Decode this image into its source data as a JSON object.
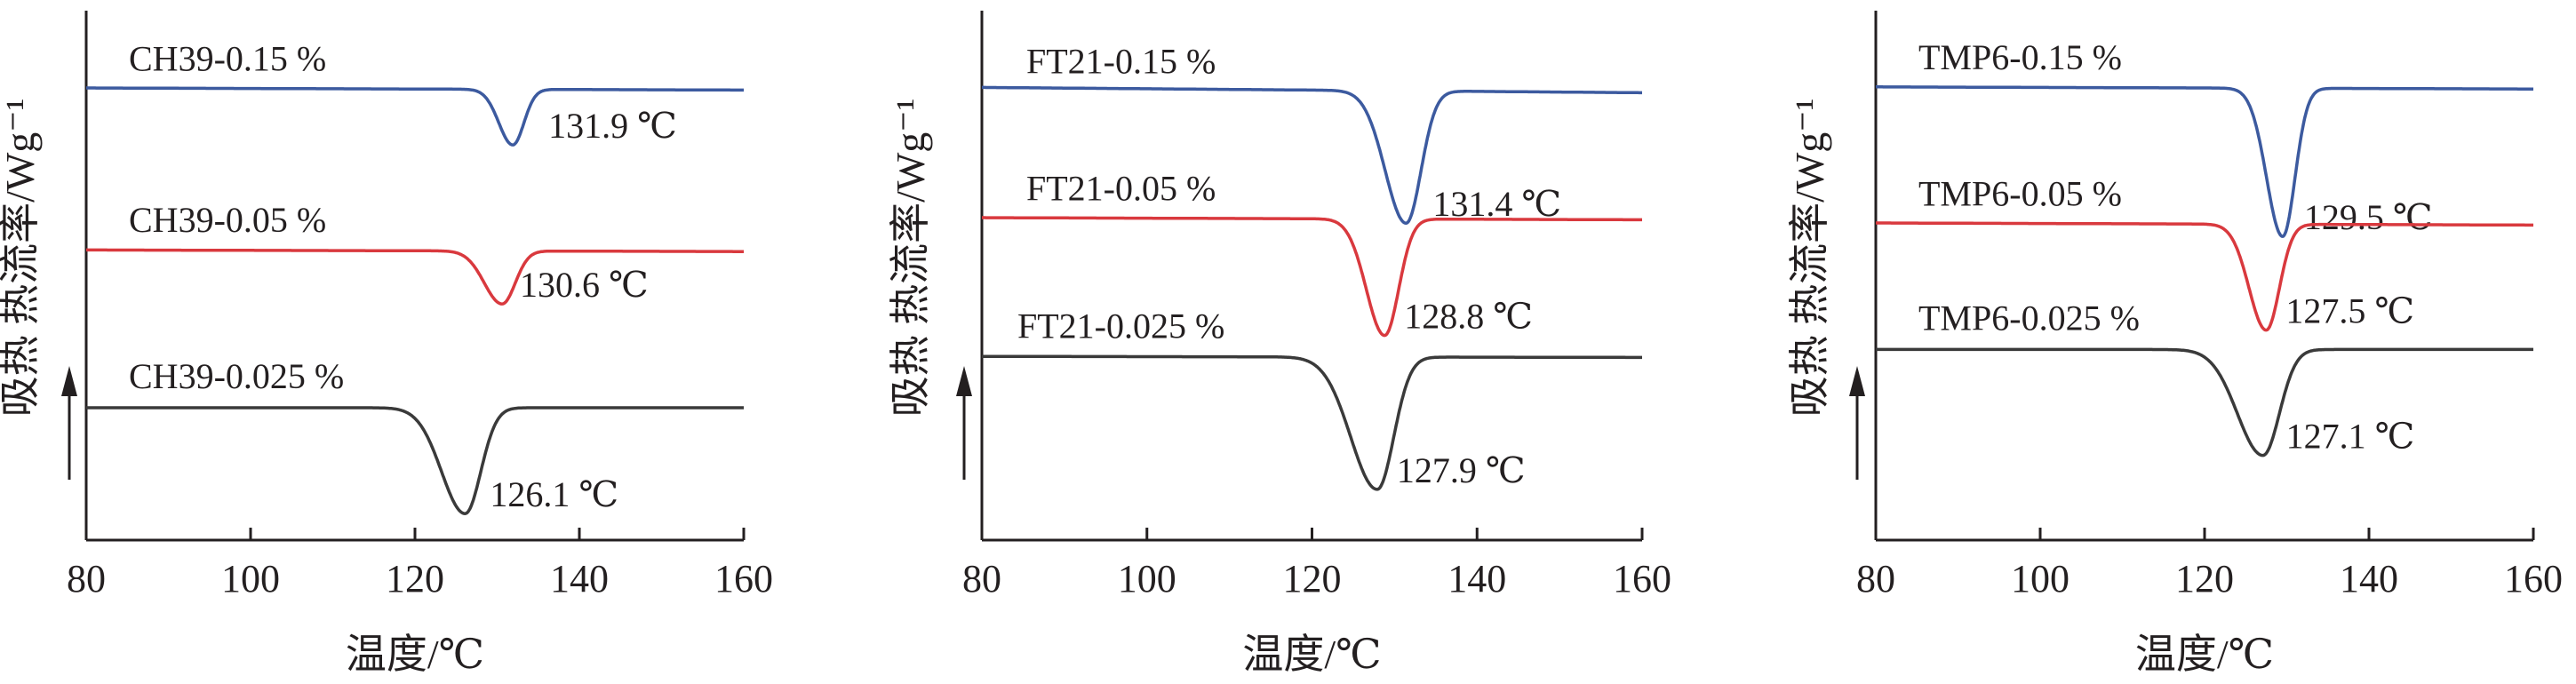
{
  "colors": {
    "axis": "#231f20",
    "series": [
      "#3c5a9f",
      "#d9393e",
      "#3a3a3a"
    ]
  },
  "chart_data": [
    {
      "type": "line",
      "xlabel": "温度/℃",
      "ylabel": "吸热 热流率/Wg⁻¹",
      "xlim": [
        80,
        160
      ],
      "xticks": [
        80,
        100,
        120,
        140,
        160
      ],
      "grid": false,
      "series": [
        {
          "name": "CH39-0.15 %",
          "baseline": 0.85,
          "peak_x": 131.9,
          "peak_label": "131.9 ℃",
          "depth": 0.105,
          "width": 1.35,
          "tail": 0.25,
          "drift": 0.004
        },
        {
          "name": "CH39-0.05 %",
          "baseline": 0.545,
          "peak_x": 130.6,
          "peak_label": "130.6 ℃",
          "depth": 0.1,
          "width": 1.6,
          "tail": 0.35,
          "drift": 0.003
        },
        {
          "name": "CH39-0.025 %",
          "baseline": 0.25,
          "peak_x": 126.1,
          "peak_label": "126.1 ℃",
          "depth": 0.2,
          "width": 1.9,
          "tail": 0.5,
          "drift": 0.0
        }
      ]
    },
    {
      "type": "line",
      "xlabel": "温度/℃",
      "ylabel": "吸热 热流率/Wg⁻¹",
      "xlim": [
        80,
        160
      ],
      "xticks": [
        80,
        100,
        120,
        140,
        160
      ],
      "grid": false,
      "series": [
        {
          "name": "FT21-0.15 %",
          "baseline": 0.845,
          "peak_x": 131.4,
          "peak_label": "131.4 ℃",
          "depth": 0.25,
          "width": 1.8,
          "tail": 0.4,
          "drift": 0.01
        },
        {
          "name": "FT21-0.05 %",
          "baseline": 0.605,
          "peak_x": 128.8,
          "peak_label": "128.8 ℃",
          "depth": 0.22,
          "width": 1.7,
          "tail": 0.3,
          "drift": 0.004
        },
        {
          "name": "FT21-0.025 %",
          "baseline": 0.345,
          "peak_x": 127.9,
          "peak_label": "127.9 ℃",
          "depth": 0.25,
          "width": 2.0,
          "tail": 0.6,
          "drift": 0.002
        }
      ]
    },
    {
      "type": "line",
      "xlabel": "温度/℃",
      "ylabel": "吸热 热流率/Wg⁻¹",
      "xlim": [
        80,
        160
      ],
      "xticks": [
        80,
        100,
        120,
        140,
        160
      ],
      "grid": false,
      "series": [
        {
          "name": "TMP6-0.15 %",
          "baseline": 0.852,
          "peak_x": 129.5,
          "peak_label": "129.5 ℃",
          "depth": 0.28,
          "width": 1.5,
          "tail": 0.3,
          "drift": 0.004
        },
        {
          "name": "TMP6-0.05 %",
          "baseline": 0.595,
          "peak_x": 127.5,
          "peak_label": "127.5 ℃",
          "depth": 0.2,
          "width": 1.6,
          "tail": 0.3,
          "drift": 0.004
        },
        {
          "name": "TMP6-0.025 %",
          "baseline": 0.36,
          "peak_x": 127.1,
          "peak_label": "127.1 ℃",
          "depth": 0.2,
          "width": 2.0,
          "tail": 0.55,
          "drift": 0.0
        }
      ]
    }
  ]
}
